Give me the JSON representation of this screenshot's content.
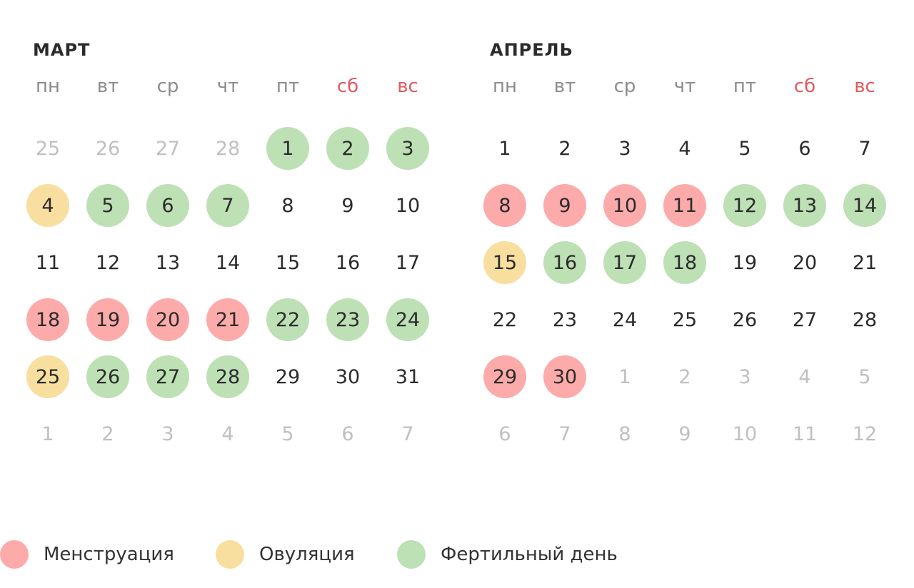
{
  "colors": {
    "menstruation": "#fdaaaa",
    "ovulation": "#f8dfa0",
    "fertile": "#bde0b5",
    "weekend": "#e2595e",
    "muted": "#c0c0c0"
  },
  "weekdays": [
    {
      "label": "пн",
      "weekend": false
    },
    {
      "label": "вт",
      "weekend": false
    },
    {
      "label": "ср",
      "weekend": false
    },
    {
      "label": "чт",
      "weekend": false
    },
    {
      "label": "пт",
      "weekend": false
    },
    {
      "label": "сб",
      "weekend": true
    },
    {
      "label": "вс",
      "weekend": true
    }
  ],
  "months": [
    {
      "name": "МАРТ",
      "days": [
        {
          "d": "25",
          "muted": true,
          "type": ""
        },
        {
          "d": "26",
          "muted": true,
          "type": ""
        },
        {
          "d": "27",
          "muted": true,
          "type": ""
        },
        {
          "d": "28",
          "muted": true,
          "type": ""
        },
        {
          "d": "1",
          "muted": false,
          "type": "fertile"
        },
        {
          "d": "2",
          "muted": false,
          "type": "fertile"
        },
        {
          "d": "3",
          "muted": false,
          "type": "fertile"
        },
        {
          "d": "4",
          "muted": false,
          "type": "ovulation"
        },
        {
          "d": "5",
          "muted": false,
          "type": "fertile"
        },
        {
          "d": "6",
          "muted": false,
          "type": "fertile"
        },
        {
          "d": "7",
          "muted": false,
          "type": "fertile"
        },
        {
          "d": "8",
          "muted": false,
          "type": ""
        },
        {
          "d": "9",
          "muted": false,
          "type": ""
        },
        {
          "d": "10",
          "muted": false,
          "type": ""
        },
        {
          "d": "11",
          "muted": false,
          "type": ""
        },
        {
          "d": "12",
          "muted": false,
          "type": ""
        },
        {
          "d": "13",
          "muted": false,
          "type": ""
        },
        {
          "d": "14",
          "muted": false,
          "type": ""
        },
        {
          "d": "15",
          "muted": false,
          "type": ""
        },
        {
          "d": "16",
          "muted": false,
          "type": ""
        },
        {
          "d": "17",
          "muted": false,
          "type": ""
        },
        {
          "d": "18",
          "muted": false,
          "type": "menstruation"
        },
        {
          "d": "19",
          "muted": false,
          "type": "menstruation"
        },
        {
          "d": "20",
          "muted": false,
          "type": "menstruation"
        },
        {
          "d": "21",
          "muted": false,
          "type": "menstruation"
        },
        {
          "d": "22",
          "muted": false,
          "type": "fertile"
        },
        {
          "d": "23",
          "muted": false,
          "type": "fertile"
        },
        {
          "d": "24",
          "muted": false,
          "type": "fertile"
        },
        {
          "d": "25",
          "muted": false,
          "type": "ovulation"
        },
        {
          "d": "26",
          "muted": false,
          "type": "fertile"
        },
        {
          "d": "27",
          "muted": false,
          "type": "fertile"
        },
        {
          "d": "28",
          "muted": false,
          "type": "fertile"
        },
        {
          "d": "29",
          "muted": false,
          "type": ""
        },
        {
          "d": "30",
          "muted": false,
          "type": ""
        },
        {
          "d": "31",
          "muted": false,
          "type": ""
        },
        {
          "d": "1",
          "muted": true,
          "type": ""
        },
        {
          "d": "2",
          "muted": true,
          "type": ""
        },
        {
          "d": "3",
          "muted": true,
          "type": ""
        },
        {
          "d": "4",
          "muted": true,
          "type": ""
        },
        {
          "d": "5",
          "muted": true,
          "type": ""
        },
        {
          "d": "6",
          "muted": true,
          "type": ""
        },
        {
          "d": "7",
          "muted": true,
          "type": ""
        }
      ]
    },
    {
      "name": "АПРЕЛЬ",
      "days": [
        {
          "d": "1",
          "muted": false,
          "type": ""
        },
        {
          "d": "2",
          "muted": false,
          "type": ""
        },
        {
          "d": "3",
          "muted": false,
          "type": ""
        },
        {
          "d": "4",
          "muted": false,
          "type": ""
        },
        {
          "d": "5",
          "muted": false,
          "type": ""
        },
        {
          "d": "6",
          "muted": false,
          "type": ""
        },
        {
          "d": "7",
          "muted": false,
          "type": ""
        },
        {
          "d": "8",
          "muted": false,
          "type": "menstruation"
        },
        {
          "d": "9",
          "muted": false,
          "type": "menstruation"
        },
        {
          "d": "10",
          "muted": false,
          "type": "menstruation"
        },
        {
          "d": "11",
          "muted": false,
          "type": "menstruation"
        },
        {
          "d": "12",
          "muted": false,
          "type": "fertile"
        },
        {
          "d": "13",
          "muted": false,
          "type": "fertile"
        },
        {
          "d": "14",
          "muted": false,
          "type": "fertile"
        },
        {
          "d": "15",
          "muted": false,
          "type": "ovulation"
        },
        {
          "d": "16",
          "muted": false,
          "type": "fertile"
        },
        {
          "d": "17",
          "muted": false,
          "type": "fertile"
        },
        {
          "d": "18",
          "muted": false,
          "type": "fertile"
        },
        {
          "d": "19",
          "muted": false,
          "type": ""
        },
        {
          "d": "20",
          "muted": false,
          "type": ""
        },
        {
          "d": "21",
          "muted": false,
          "type": ""
        },
        {
          "d": "22",
          "muted": false,
          "type": ""
        },
        {
          "d": "23",
          "muted": false,
          "type": ""
        },
        {
          "d": "24",
          "muted": false,
          "type": ""
        },
        {
          "d": "25",
          "muted": false,
          "type": ""
        },
        {
          "d": "26",
          "muted": false,
          "type": ""
        },
        {
          "d": "27",
          "muted": false,
          "type": ""
        },
        {
          "d": "28",
          "muted": false,
          "type": ""
        },
        {
          "d": "29",
          "muted": false,
          "type": "menstruation"
        },
        {
          "d": "30",
          "muted": false,
          "type": "menstruation"
        },
        {
          "d": "1",
          "muted": true,
          "type": ""
        },
        {
          "d": "2",
          "muted": true,
          "type": ""
        },
        {
          "d": "3",
          "muted": true,
          "type": ""
        },
        {
          "d": "4",
          "muted": true,
          "type": ""
        },
        {
          "d": "5",
          "muted": true,
          "type": ""
        },
        {
          "d": "6",
          "muted": true,
          "type": ""
        },
        {
          "d": "7",
          "muted": true,
          "type": ""
        },
        {
          "d": "8",
          "muted": true,
          "type": ""
        },
        {
          "d": "9",
          "muted": true,
          "type": ""
        },
        {
          "d": "10",
          "muted": true,
          "type": ""
        },
        {
          "d": "11",
          "muted": true,
          "type": ""
        },
        {
          "d": "12",
          "muted": true,
          "type": ""
        }
      ]
    }
  ],
  "legend": [
    {
      "label": "Менструация",
      "type": "menstruation"
    },
    {
      "label": "Овуляция",
      "type": "ovulation"
    },
    {
      "label": "Фертильный день",
      "type": "fertile"
    }
  ]
}
